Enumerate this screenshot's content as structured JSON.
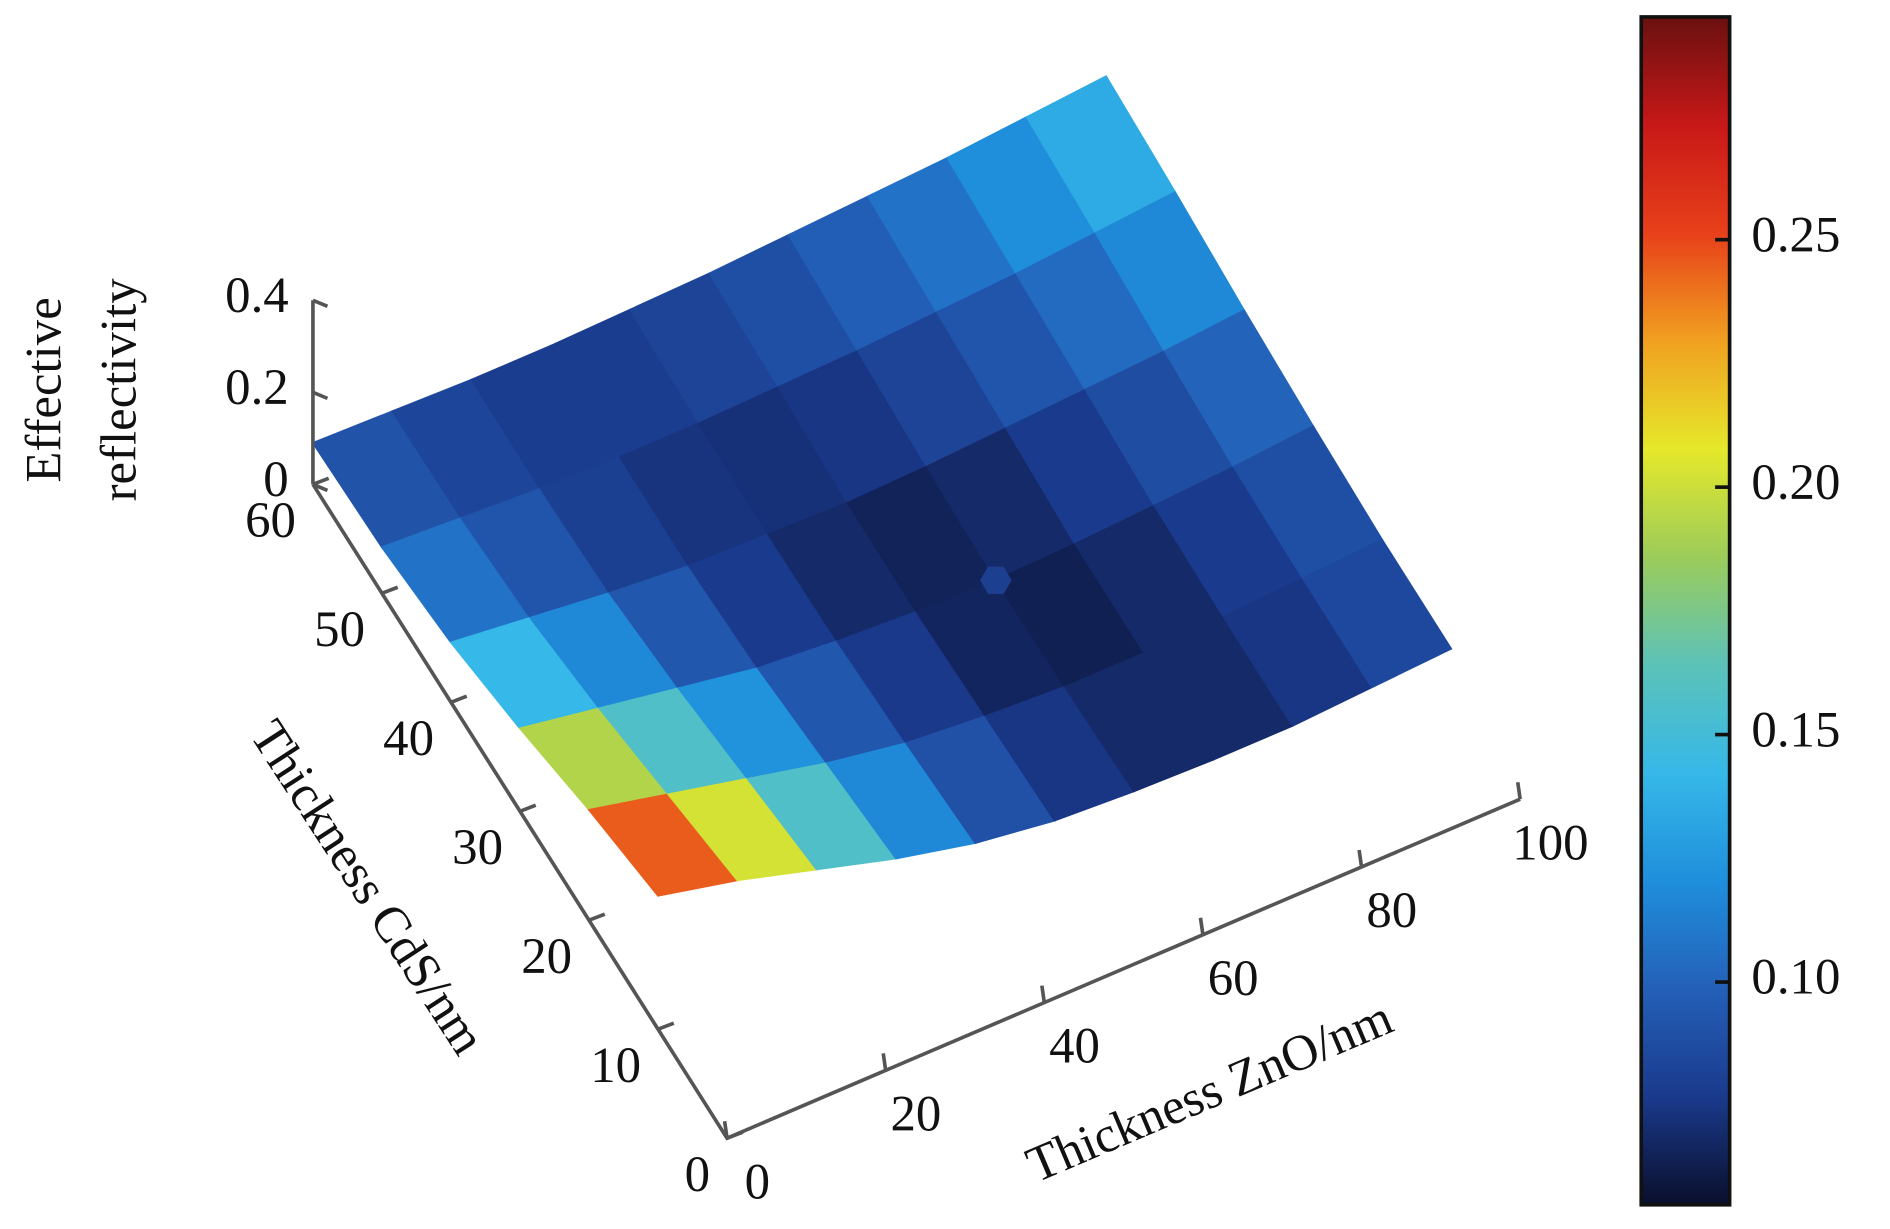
{
  "chart_data": {
    "type": "surface3d",
    "xlabel": "Thickness ZnO/nm",
    "ylabel": "Thickness CdS/nm",
    "zlabel": [
      "Effective",
      "reflectivity"
    ],
    "x": [
      0,
      10,
      20,
      30,
      40,
      50,
      60,
      70,
      80,
      90,
      100
    ],
    "y": [
      10,
      20,
      30,
      40,
      50,
      60
    ],
    "values": [
      [
        0.29,
        0.25,
        0.2,
        0.15,
        0.11,
        0.085,
        0.075,
        0.07,
        0.07,
        0.08,
        0.09
      ],
      [
        0.24,
        0.2,
        0.16,
        0.12,
        0.09,
        0.075,
        0.065,
        0.065,
        0.07,
        0.08,
        0.09
      ],
      [
        0.18,
        0.15,
        0.12,
        0.09,
        0.075,
        0.065,
        0.06,
        0.065,
        0.075,
        0.085,
        0.1
      ],
      [
        0.13,
        0.11,
        0.09,
        0.075,
        0.07,
        0.065,
        0.07,
        0.08,
        0.09,
        0.1,
        0.115
      ],
      [
        0.1,
        0.09,
        0.08,
        0.075,
        0.075,
        0.08,
        0.085,
        0.095,
        0.105,
        0.12,
        0.135
      ],
      [
        0.09,
        0.085,
        0.08,
        0.08,
        0.085,
        0.09,
        0.1,
        0.11,
        0.12,
        0.135,
        0.15
      ]
    ],
    "min_point": {
      "x": 60,
      "y": 30,
      "z": 0.06,
      "color": "#1d3f8f"
    },
    "xlim": [
      0,
      100
    ],
    "xticks": [
      0,
      20,
      40,
      60,
      80,
      100
    ],
    "ylim": [
      0,
      60
    ],
    "yticks": [
      0,
      10,
      20,
      30,
      40,
      50,
      60
    ],
    "zlim": [
      0,
      0.4
    ],
    "zticks": [
      0,
      0.2,
      0.4
    ],
    "colorbar_lim": [
      0.055,
      0.295
    ],
    "colorbar_ticks": [
      {
        "value": 0.1,
        "label": "0.10"
      },
      0.15,
      {
        "value": 0.2,
        "label": "0.20"
      },
      0.25
    ],
    "colormap": [
      "#0a0f2c",
      "#1a3a8c",
      "#2460b8",
      "#1f8fdc",
      "#36b8e8",
      "#5cc2b8",
      "#9ccc5a",
      "#e6e82a",
      "#f0a020",
      "#e8401a",
      "#c81818",
      "#6a1010"
    ]
  }
}
